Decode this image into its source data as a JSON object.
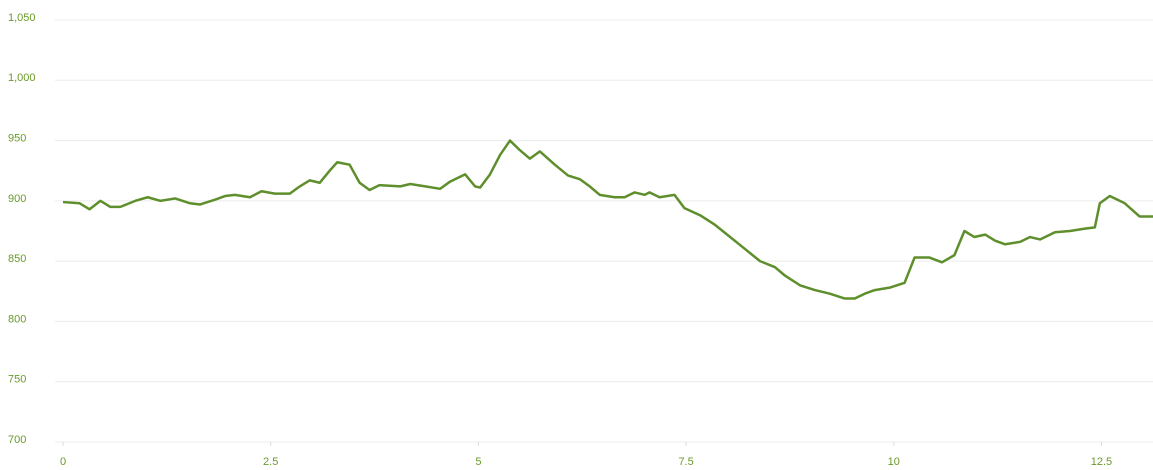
{
  "chart_data": {
    "type": "line",
    "x": [
      0,
      0.2,
      0.32,
      0.45,
      0.57,
      0.69,
      0.87,
      1.02,
      1.17,
      1.35,
      1.53,
      1.65,
      1.83,
      1.95,
      2.07,
      2.25,
      2.39,
      2.55,
      2.73,
      2.85,
      2.97,
      3.09,
      3.21,
      3.3,
      3.45,
      3.57,
      3.69,
      3.81,
      4.06,
      4.18,
      4.36,
      4.54,
      4.66,
      4.78,
      4.84,
      4.96,
      5.02,
      5.14,
      5.26,
      5.38,
      5.5,
      5.62,
      5.74,
      5.92,
      6.08,
      6.22,
      6.34,
      6.46,
      6.64,
      6.76,
      6.88,
      7.0,
      7.06,
      7.18,
      7.36,
      7.48,
      7.67,
      7.85,
      8.03,
      8.21,
      8.39,
      8.57,
      8.69,
      8.87,
      9.05,
      9.23,
      9.41,
      9.53,
      9.65,
      9.77,
      9.95,
      10.13,
      10.25,
      10.43,
      10.58,
      10.73,
      10.85,
      10.97,
      11.1,
      11.22,
      11.34,
      11.52,
      11.64,
      11.76,
      11.94,
      12.12,
      12.3,
      12.42,
      12.48,
      12.6,
      12.78,
      12.96,
      13.12
    ],
    "series": [
      {
        "color": "#5e8f2c",
        "values": [
          899,
          898,
          893,
          900,
          895,
          895,
          900,
          903,
          900,
          902,
          898,
          897,
          901,
          904,
          905,
          903,
          908,
          906,
          906,
          912,
          917,
          915,
          925,
          932,
          930,
          915,
          909,
          913,
          912,
          914,
          912,
          910,
          916,
          920,
          922,
          912,
          911,
          922,
          938,
          950,
          942,
          935,
          941,
          930,
          921,
          918,
          912,
          905,
          903,
          903,
          907,
          905,
          907,
          903,
          905,
          894,
          888,
          880,
          870,
          860,
          850,
          845,
          838,
          830,
          826,
          823,
          819,
          819,
          823,
          826,
          828,
          832,
          853,
          853,
          849,
          855,
          875,
          870,
          872,
          867,
          864,
          866,
          870,
          868,
          874,
          875,
          877,
          878,
          898,
          904,
          898,
          887,
          887
        ]
      }
    ],
    "xlim": [
      0,
      13.12
    ],
    "ylim": [
      700,
      1050
    ],
    "xticks": [
      0,
      2.5,
      5,
      7.5,
      10,
      12.5
    ],
    "yticks": [
      700,
      750,
      800,
      850,
      900,
      950,
      {
        "value": 1000,
        "label": "1,000"
      },
      {
        "value": 1050,
        "label": "1,050"
      }
    ],
    "grid": true
  }
}
